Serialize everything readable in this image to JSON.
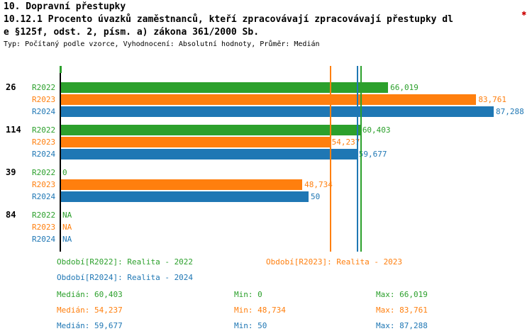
{
  "header": {
    "title": "10. Dopravní přestupky",
    "subtitle_line1": "10.12.1 Procento úvazků zaměstnanců, kteří zpracovávají zpracovávají přestupky dl",
    "subtitle_line2": "e §125f, odst. 2, písm. a) zákona 361/2000 Sb.",
    "meta": "Typ: Počítaný podle vzorce, Vyhodnocení: Absolutní hodnoty, Průměr: Medián",
    "corner_mark": "✱"
  },
  "colors": {
    "green": "#2ca02c",
    "orange": "#ff7f0e",
    "blue": "#1f77b4",
    "axis": "#000000",
    "red": "#cc0000"
  },
  "chart_data": {
    "type": "bar",
    "orientation": "horizontal",
    "title": "10.12.1 Procento úvazků zaměstnanců, kteří zpracovávají zpracovávají přestupky dle §125f, odst. 2, písm. a) zákona 361/2000 Sb.",
    "value_format": "czech-decimal-comma",
    "axis_min": 0,
    "axis_max": 95,
    "grid": false,
    "series_names": [
      "R2022",
      "R2023",
      "R2024"
    ],
    "groups": [
      {
        "label": "26",
        "bars": [
          {
            "series": "R2022",
            "value": 66.019,
            "display": "66,019",
            "color": "green"
          },
          {
            "series": "R2023",
            "value": 83.761,
            "display": "83,761",
            "color": "orange"
          },
          {
            "series": "R2024",
            "value": 87.288,
            "display": "87,288",
            "color": "blue"
          }
        ]
      },
      {
        "label": "114",
        "bars": [
          {
            "series": "R2022",
            "value": 60.403,
            "display": "60,403",
            "color": "green"
          },
          {
            "series": "R2023",
            "value": 54.237,
            "display": "54,237",
            "color": "orange"
          },
          {
            "series": "R2024",
            "value": 59.677,
            "display": "59,677",
            "color": "blue"
          }
        ]
      },
      {
        "label": "39",
        "bars": [
          {
            "series": "R2022",
            "value": 0,
            "display": "0",
            "color": "green"
          },
          {
            "series": "R2023",
            "value": 48.734,
            "display": "48,734",
            "color": "orange"
          },
          {
            "series": "R2024",
            "value": 50,
            "display": "50",
            "color": "blue"
          }
        ]
      },
      {
        "label": "84",
        "bars": [
          {
            "series": "R2022",
            "value": null,
            "display": "NA",
            "color": "green"
          },
          {
            "series": "R2023",
            "value": null,
            "display": "NA",
            "color": "orange"
          },
          {
            "series": "R2024",
            "value": null,
            "display": "NA",
            "color": "blue"
          }
        ]
      }
    ],
    "median_lines": [
      {
        "series": "R2022",
        "value": 60.403,
        "color": "green"
      },
      {
        "series": "R2023",
        "value": 54.237,
        "color": "orange"
      },
      {
        "series": "R2024",
        "value": 59.677,
        "color": "blue"
      }
    ],
    "stats": [
      {
        "series": "R2022",
        "median": 60.403,
        "min": 0,
        "max": 66.019
      },
      {
        "series": "R2023",
        "median": 54.237,
        "min": 48.734,
        "max": 83.761
      },
      {
        "series": "R2024",
        "median": 59.677,
        "min": 50,
        "max": 87.288
      }
    ]
  },
  "legend": {
    "items": [
      {
        "label": "Období[R2022]: Realita - 2022",
        "color": "green"
      },
      {
        "label": "Období[R2023]: Realita - 2023",
        "color": "orange"
      },
      {
        "label": "Období[R2024]: Realita - 2024",
        "color": "blue"
      }
    ]
  },
  "stats_rows": [
    {
      "color": "green",
      "median": "Medián: 60,403",
      "min": "Min: 0",
      "max": "Max: 66,019"
    },
    {
      "color": "orange",
      "median": "Medián: 54,237",
      "min": "Min: 48,734",
      "max": "Max: 83,761"
    },
    {
      "color": "blue",
      "median": "Medián: 59,677",
      "min": "Min: 50",
      "max": "Max: 87,288"
    }
  ]
}
